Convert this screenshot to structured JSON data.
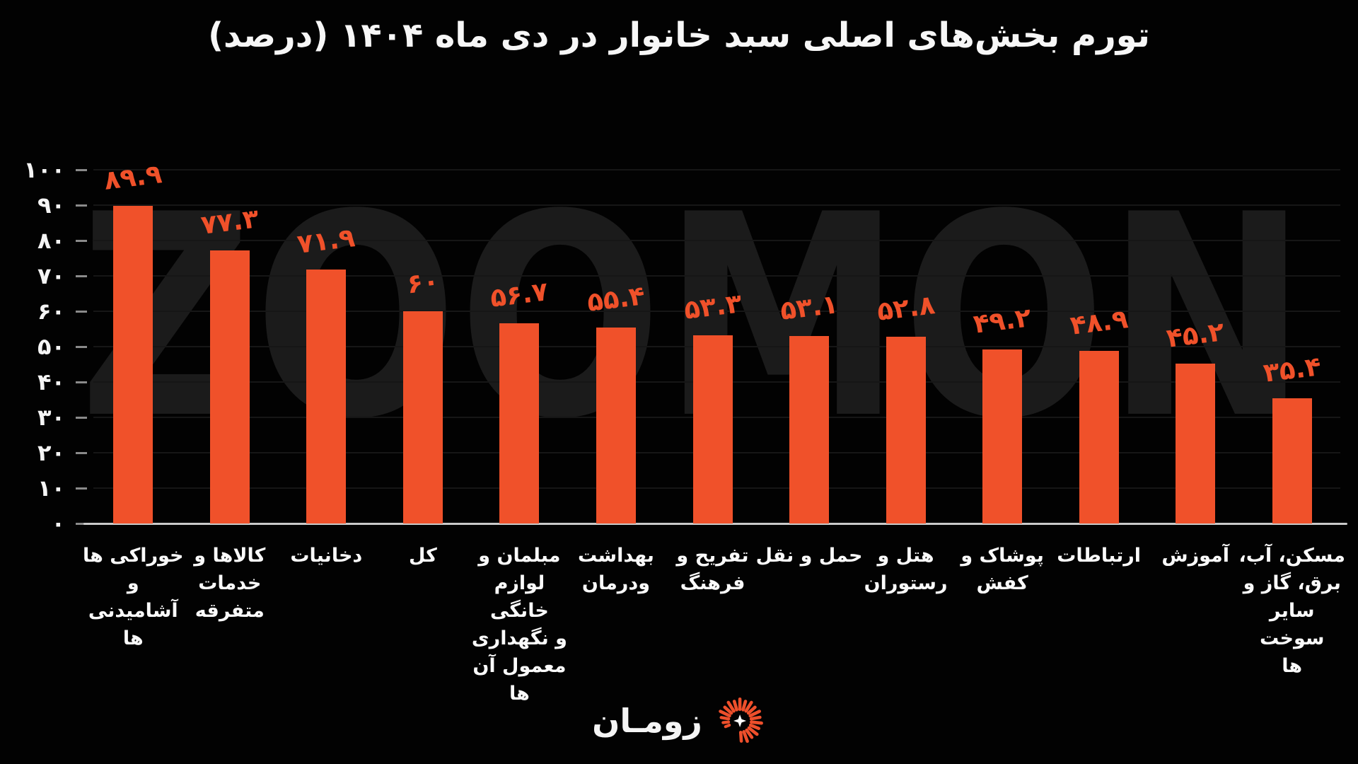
{
  "title": "تورم بخش‌های اصلی سبد خانوار در دی ماه ۱۴۰۴ (درصد)",
  "watermark": "ZOOMON",
  "brand": {
    "name": "زومـان",
    "icon": "sunburst-shutter",
    "icon_color": "#ee4f2b",
    "icon_star_color": "#ffffff"
  },
  "colors": {
    "background": "#020202",
    "bar": "#f0512a",
    "value_label": "#f0512a",
    "axis_text": "#f5f5f5",
    "gridline": "#161616",
    "tick": "#8a8a8a",
    "axis_line": "#c9c9c9",
    "watermark": "#1b1b1b"
  },
  "chart_data": {
    "type": "bar",
    "title": "تورم بخش‌های اصلی سبد خانوار در دی ماه ۱۴۰۴ (درصد)",
    "categories": [
      "خوراکی ها و آشامیدنی ها",
      "کالاها و خدمات متفرقه",
      "دخانیات",
      "کل",
      "مبلمان و لوازم خانگی و نگهداری معمول آن ها",
      "بهداشت ودرمان",
      "تفریح و فرهنگ",
      "حمل و نقل",
      "هتل و رستوران",
      "پوشاک و کفش",
      "ارتباطات",
      "آموزش",
      "مسکن، آب، برق، گاز و سایر سوخت ها"
    ],
    "category_lines": [
      [
        "خوراکی ها و",
        "آشامیدنی",
        "ها"
      ],
      [
        "کالاها و",
        "خدمات",
        "متفرقه"
      ],
      [
        "دخانیات"
      ],
      [
        "کل"
      ],
      [
        "مبلمان و",
        "لوازم خانگی",
        "و نگهداری",
        "معمول آن",
        "ها"
      ],
      [
        "بهداشت",
        "ودرمان"
      ],
      [
        "تفریح و",
        "فرهنگ"
      ],
      [
        "حمل و نقل"
      ],
      [
        "هتل و",
        "رستوران"
      ],
      [
        "پوشاک و",
        "کفش"
      ],
      [
        "ارتباطات"
      ],
      [
        "آموزش"
      ],
      [
        "مسکن، آب،",
        "برق، گاز و",
        "سایر سوخت",
        "ها"
      ]
    ],
    "values": [
      89.9,
      77.3,
      71.9,
      60,
      56.7,
      55.4,
      53.3,
      53.1,
      52.8,
      49.2,
      48.9,
      45.2,
      35.4
    ],
    "value_labels": [
      "۸۹.۹",
      "۷۷.۳",
      "۷۱.۹",
      "۶۰",
      "۵۶.۷",
      "۵۵.۴",
      "۵۳.۳",
      "۵۳.۱",
      "۵۲.۸",
      "۴۹.۲",
      "۴۸.۹",
      "۴۵.۲",
      "۳۵.۴"
    ],
    "xlabel": "",
    "ylabel": "",
    "ylim": [
      0,
      100
    ],
    "ytick_step": 10,
    "ytick_labels": [
      "۰",
      "۱۰",
      "۲۰",
      "۳۰",
      "۴۰",
      "۵۰",
      "۶۰",
      "۷۰",
      "۸۰",
      "۹۰",
      "۱۰۰"
    ],
    "grid": true,
    "legend": false
  }
}
